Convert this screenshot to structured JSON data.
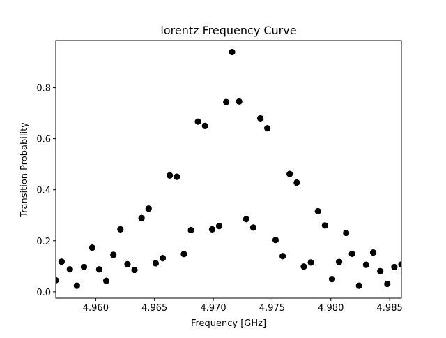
{
  "chart_data": {
    "type": "scatter",
    "title": "lorentz Frequency Curve",
    "xlabel": "Frequency [GHz]",
    "ylabel": "Transition Probability",
    "xlim": [
      4.9566,
      4.986
    ],
    "ylim": [
      -0.025,
      0.985
    ],
    "xticks": [
      4.96,
      4.965,
      4.97,
      4.975,
      4.98,
      4.985
    ],
    "xtick_labels": [
      "4.960",
      "4.965",
      "4.970",
      "4.975",
      "4.980",
      "4.985"
    ],
    "yticks": [
      0.0,
      0.2,
      0.4,
      0.6,
      0.8
    ],
    "ytick_labels": [
      "0.0",
      "0.2",
      "0.4",
      "0.6",
      "0.8"
    ],
    "grid": false,
    "marker_color": "#000000",
    "x": [
      4.9566,
      4.9571,
      4.9578,
      4.9584,
      4.959,
      4.9597,
      4.9603,
      4.9609,
      4.9615,
      4.9621,
      4.9627,
      4.9633,
      4.9639,
      4.9645,
      4.9651,
      4.9657,
      4.9663,
      4.9669,
      4.9675,
      4.9681,
      4.9687,
      4.9693,
      4.9699,
      4.9705,
      4.9711,
      4.9716,
      4.9722,
      4.9728,
      4.9734,
      4.974,
      4.9746,
      4.9753,
      4.9759,
      4.9765,
      4.9771,
      4.9777,
      4.9783,
      4.9789,
      4.9795,
      4.9801,
      4.9807,
      4.9813,
      4.9818,
      4.9824,
      4.983,
      4.9836,
      4.9842,
      4.9848,
      4.9854,
      4.986
    ],
    "y": [
      0.045,
      0.118,
      0.088,
      0.024,
      0.097,
      0.173,
      0.088,
      0.043,
      0.145,
      0.245,
      0.108,
      0.086,
      0.289,
      0.326,
      0.112,
      0.132,
      0.456,
      0.451,
      0.148,
      0.242,
      0.667,
      0.65,
      0.245,
      0.258,
      0.744,
      0.94,
      0.746,
      0.285,
      0.252,
      0.68,
      0.641,
      0.203,
      0.14,
      0.462,
      0.428,
      0.099,
      0.115,
      0.316,
      0.26,
      0.05,
      0.117,
      0.231,
      0.149,
      0.024,
      0.106,
      0.154,
      0.081,
      0.031,
      0.097,
      0.107
    ]
  }
}
